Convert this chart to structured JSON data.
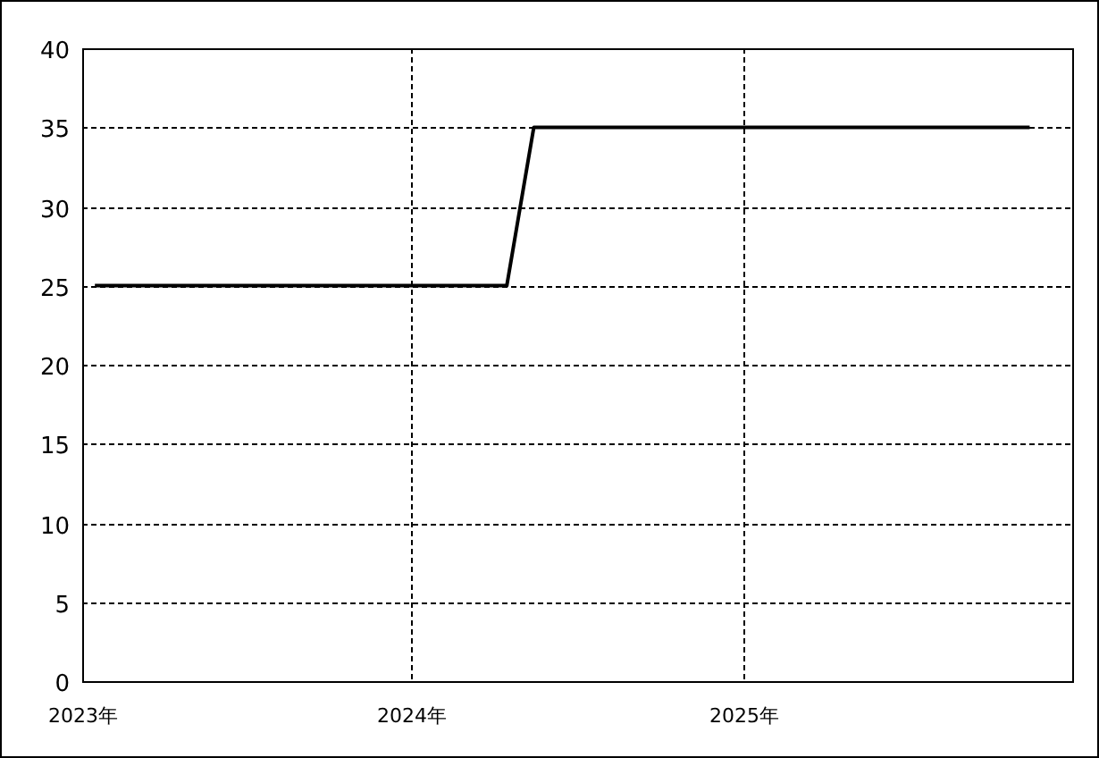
{
  "chart_data": {
    "type": "line",
    "x": [
      "2023-01-15",
      "2024-04-15",
      "2024-05-15",
      "2025-11-15"
    ],
    "series": [
      {
        "color": "#000000",
        "values": [
          25,
          25,
          35,
          35
        ]
      }
    ],
    "xlim": [
      "2023-01-01",
      "2026-01-01"
    ],
    "xticks": [
      {
        "value": "2023-01-01",
        "label": "2023年"
      },
      {
        "value": "2024-01-01",
        "label": "2024年"
      },
      {
        "value": "2025-01-01",
        "label": "2025年"
      }
    ],
    "ylim": [
      0,
      40
    ],
    "yticks": [
      0,
      5,
      10,
      15,
      20,
      25,
      30,
      35,
      40
    ],
    "grid": true,
    "marker": "none",
    "line_style": "solid"
  }
}
